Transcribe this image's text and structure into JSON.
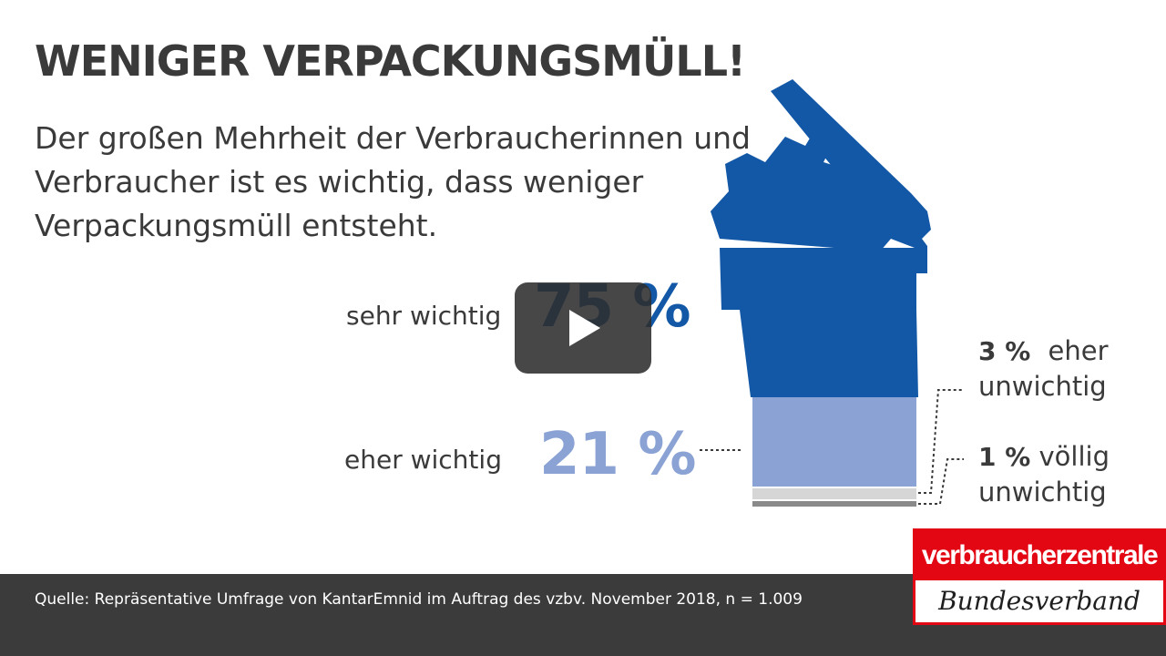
{
  "title": "WENIGER VERPACKUNGSMÜLL!",
  "subtitle": "Der großen Mehrheit der Verbraucherinnen und Verbraucher ist es wichtig, dass weniger Verpackungsmüll entsteht.",
  "results": {
    "sehr_wichtig": {
      "label": "sehr wichtig",
      "value_text": "75 %",
      "value": 75,
      "color": "#1358a7"
    },
    "eher_wichtig": {
      "label": "eher wichtig",
      "value_text": "21 %",
      "value": 21,
      "color": "#8aa2d4"
    },
    "eher_unwichtig": {
      "value_text": "3 %",
      "value": 3,
      "line1": "eher",
      "line2": "unwichtig",
      "color": "#d6d6d6"
    },
    "voellig_unwichtig": {
      "value_text": "1 %",
      "value": 1,
      "line1": "völlig",
      "line2": "unwichtig",
      "color": "#8a8a8a"
    }
  },
  "source": "Quelle: Repräsentative Umfrage von KantarEmnid im Auftrag des vzbv. November 2018, n = 1.009",
  "logo": {
    "top": "verbraucherzentrale",
    "bottom": "Bundesverband",
    "color": "#e30613"
  },
  "play_button": {
    "icon": "play-icon"
  }
}
